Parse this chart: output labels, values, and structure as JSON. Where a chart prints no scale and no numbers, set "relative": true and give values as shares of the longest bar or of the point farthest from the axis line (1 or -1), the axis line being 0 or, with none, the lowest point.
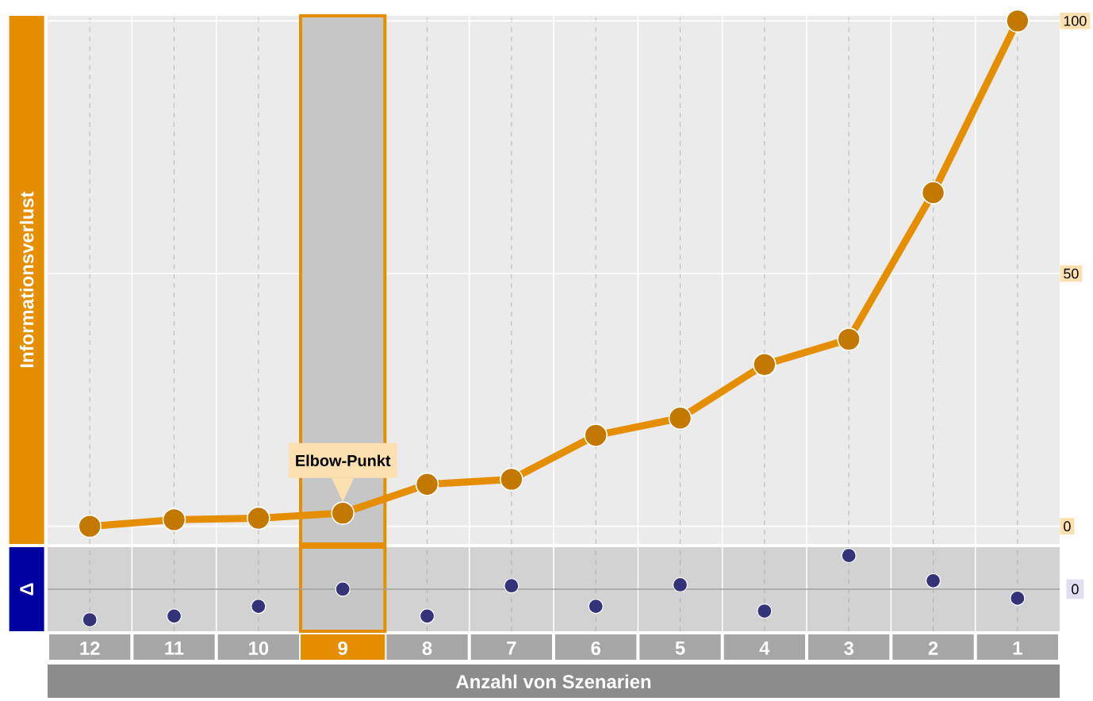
{
  "chart_data": [
    {
      "type": "line",
      "ylabel": "Informationsverlust",
      "categories": [
        "12",
        "11",
        "10",
        "9",
        "8",
        "7",
        "6",
        "5",
        "4",
        "3",
        "2",
        "1"
      ],
      "series": [
        {
          "color": "#e58e00",
          "values": [
            0,
            1.3,
            1.6,
            2.6,
            8.3,
            9.3,
            18,
            21.4,
            32,
            37,
            66,
            100
          ]
        }
      ],
      "ylim": [
        -3.5,
        101
      ],
      "yticks": [
        0,
        50,
        100
      ],
      "grid": true,
      "marker": "circle",
      "line_style": "solid",
      "tick_labels": "y",
      "bands": [
        {
          "axis": "x",
          "from": "9",
          "to": "9",
          "color": "#c6c6c6"
        }
      ],
      "annotations": [
        {
          "text": "Elbow-Punkt",
          "x": "9",
          "y": 2.6
        }
      ]
    },
    {
      "type": "scatter",
      "ylabel": "Δ",
      "xlabel": "Anzahl von Szenarien",
      "categories": [
        "12",
        "11",
        "10",
        "9",
        "8",
        "7",
        "6",
        "5",
        "4",
        "3",
        "2",
        "1"
      ],
      "series": [
        {
          "color": "#34337a",
          "values": [
            -0.91,
            -0.8,
            -0.51,
            0,
            -0.8,
            0.1,
            -0.51,
            0.13,
            -0.65,
            1,
            0.25,
            -0.27
          ]
        }
      ],
      "relative": true,
      "grid": "x",
      "marker": "circle",
      "tick_labels": "x",
      "bands": [
        {
          "axis": "x",
          "from": "9",
          "to": "9",
          "color": "#c6c6c6"
        }
      ],
      "ref_lines": [
        {
          "axis": "y",
          "value": 0,
          "label": "0",
          "color": "#a0a0a0"
        }
      ]
    }
  ]
}
